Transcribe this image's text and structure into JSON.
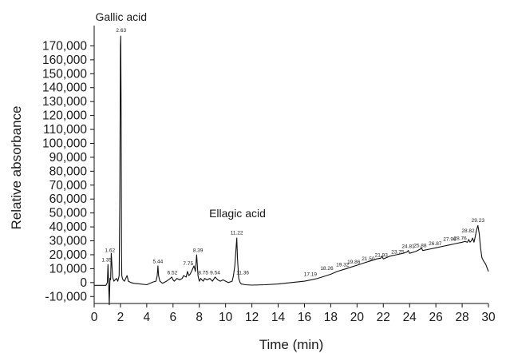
{
  "chart_data": {
    "type": "line",
    "xlabel": "Time (min)",
    "ylabel": "Relative absorbance",
    "xlim": [
      0,
      30
    ],
    "ylim": [
      -15000,
      180000
    ],
    "x_ticks": [
      0,
      2,
      4,
      6,
      8,
      10,
      12,
      14,
      16,
      18,
      20,
      22,
      24,
      26,
      28,
      30
    ],
    "x_tick_labels": [
      "0",
      "2",
      "4",
      "6",
      "8",
      "10",
      "12",
      "14",
      "16",
      "18",
      "20",
      "22",
      "24",
      "26",
      "28",
      "30"
    ],
    "y_ticks": [
      -10000,
      0,
      10000,
      20000,
      30000,
      40000,
      50000,
      60000,
      70000,
      80000,
      90000,
      100000,
      110000,
      120000,
      130000,
      140000,
      150000,
      160000,
      170000
    ],
    "y_tick_labels": [
      "-10,000",
      "0",
      "10,000",
      "20,000",
      "30,000",
      "40,000",
      "50,000",
      "60,000",
      "70,000",
      "80,000",
      "90,000",
      "100,000",
      "110,000",
      "120,000",
      "130,000",
      "140,000",
      "150,000",
      "160,000",
      "170,000"
    ],
    "grid": false,
    "annotations": [
      {
        "text": "Gallic acid",
        "x": 2.05,
        "y": 188000
      },
      {
        "text": "Ellagic acid",
        "x": 10.9,
        "y": 47000
      }
    ],
    "peak_labels": [
      {
        "text": "1.35",
        "x": 0.95,
        "y": 15000
      },
      {
        "text": "1.62",
        "x": 1.2,
        "y": 22000
      },
      {
        "text": "2.63",
        "x": 2.05,
        "y": 180000
      },
      {
        "text": "5.44",
        "x": 4.85,
        "y": 14000
      },
      {
        "text": "6.52",
        "x": 5.95,
        "y": 6000
      },
      {
        "text": "7.75",
        "x": 7.15,
        "y": 12500
      },
      {
        "text": "8.39",
        "x": 7.9,
        "y": 22000
      },
      {
        "text": "8.75",
        "x": 8.3,
        "y": 6000
      },
      {
        "text": "9.54",
        "x": 9.2,
        "y": 6000
      },
      {
        "text": "11.22",
        "x": 10.85,
        "y": 34500
      },
      {
        "text": "11.36",
        "x": 11.3,
        "y": 6000
      },
      {
        "text": "17.19",
        "x": 16.45,
        "y": 4800
      },
      {
        "text": "18.26",
        "x": 17.7,
        "y": 9000
      },
      {
        "text": "19.32",
        "x": 18.9,
        "y": 11800
      },
      {
        "text": "19.86",
        "x": 19.75,
        "y": 13800
      },
      {
        "text": "21.50",
        "x": 20.85,
        "y": 16000
      },
      {
        "text": "21.93",
        "x": 21.85,
        "y": 18500
      },
      {
        "text": "23.75",
        "x": 23.1,
        "y": 20800
      },
      {
        "text": "24.81",
        "x": 23.9,
        "y": 25000
      },
      {
        "text": "25.88",
        "x": 24.8,
        "y": 25500
      },
      {
        "text": "26.87",
        "x": 25.95,
        "y": 27000
      },
      {
        "text": "27.96",
        "x": 27.05,
        "y": 30000
      },
      {
        "text": "28.76",
        "x": 27.85,
        "y": 30500
      },
      {
        "text": "28.82",
        "x": 28.45,
        "y": 36000
      },
      {
        "text": "29.23",
        "x": 29.2,
        "y": 43500
      }
    ],
    "series": [
      {
        "x": [
          0,
          0.9,
          1.0,
          1.05,
          1.1,
          1.15,
          1.2,
          1.25,
          1.3,
          1.4,
          1.5,
          1.6,
          1.7,
          1.8,
          1.9,
          1.95,
          2.0,
          2.02,
          2.05,
          2.08,
          2.1,
          2.15,
          2.2,
          2.3,
          2.4,
          2.5,
          2.6,
          2.8,
          3.0,
          3.5,
          4.0,
          4.5,
          4.7,
          4.8,
          4.85,
          4.9,
          5.0,
          5.2,
          5.5,
          5.8,
          5.9,
          6.0,
          6.1,
          6.3,
          6.5,
          6.7,
          6.8,
          7.0,
          7.1,
          7.2,
          7.3,
          7.4,
          7.5,
          7.6,
          7.7,
          7.8,
          7.9,
          8.0,
          8.1,
          8.2,
          8.3,
          8.4,
          8.6,
          8.8,
          9.0,
          9.2,
          9.4,
          9.6,
          9.8,
          10.0,
          10.2,
          10.5,
          10.6,
          10.7,
          10.8,
          10.85,
          10.9,
          11.0,
          11.1,
          11.2,
          11.5,
          12.0,
          13.0,
          14.0,
          15.0,
          16.0,
          16.5,
          17.0,
          17.5,
          18.0,
          18.5,
          19.0,
          19.5,
          20.0,
          20.5,
          21.0,
          21.5,
          21.8,
          21.9,
          22.0,
          22.5,
          23.0,
          23.5,
          23.8,
          23.9,
          24.0,
          24.5,
          24.8,
          24.9,
          25.0,
          25.5,
          26.0,
          26.5,
          27.0,
          27.5,
          28.0,
          28.2,
          28.4,
          28.5,
          28.6,
          28.7,
          28.8,
          28.9,
          29.0,
          29.1,
          29.2,
          29.3,
          29.4,
          29.5,
          29.6,
          29.8,
          30.0
        ],
        "y": [
          -2000,
          -2000,
          0,
          13000,
          0,
          -16000,
          3000,
          2000,
          21000,
          4000,
          1000,
          2000,
          3000,
          1000,
          5000,
          60000,
          170000,
          177000,
          120000,
          20000,
          5000,
          3000,
          2000,
          1000,
          3000,
          5000,
          1000,
          0,
          -500,
          -1000,
          -1500,
          500,
          1000,
          5000,
          12000,
          5000,
          1000,
          -500,
          1000,
          3000,
          4000,
          2000,
          1000,
          3000,
          2000,
          3000,
          5000,
          4000,
          8000,
          5000,
          6000,
          8000,
          10000,
          12000,
          8000,
          20000,
          5000,
          1000,
          3000,
          2000,
          1000,
          3000,
          2000,
          3000,
          1000,
          4000,
          2000,
          1000,
          2000,
          1000,
          0,
          1000,
          5000,
          12000,
          25000,
          32000,
          18000,
          3000,
          0,
          -1000,
          -1500,
          -1800,
          -1500,
          -1000,
          0,
          1000,
          2000,
          3000,
          4500,
          6000,
          8000,
          9500,
          11000,
          12500,
          14000,
          15500,
          17000,
          17500,
          19000,
          17000,
          19000,
          20000,
          21000,
          22000,
          23000,
          21000,
          22500,
          24000,
          25000,
          23000,
          24000,
          25000,
          26000,
          27000,
          28000,
          29000,
          29500,
          29000,
          31000,
          29000,
          30000,
          32000,
          29000,
          33000,
          38000,
          41000,
          35000,
          25000,
          18000,
          16000,
          13000,
          8000
        ]
      }
    ]
  }
}
